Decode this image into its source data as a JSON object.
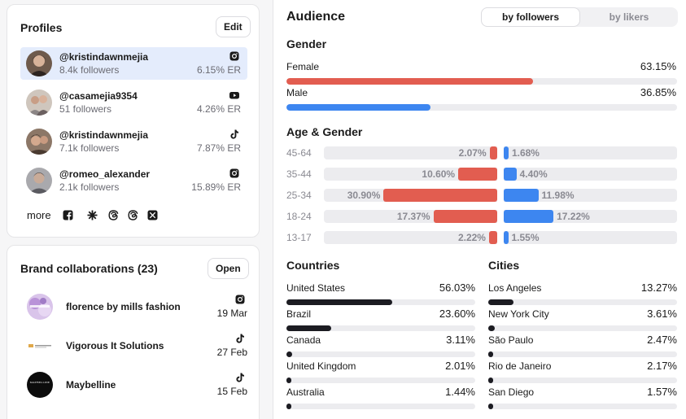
{
  "profiles": {
    "title": "Profiles",
    "edit_label": "Edit",
    "items": [
      {
        "handle": "@kristindawnmejia",
        "followers": "8.4k followers",
        "er": "6.15% ER",
        "platform": "instagram-icon"
      },
      {
        "handle": "@casamejia9354",
        "followers": "51 followers",
        "er": "4.26% ER",
        "platform": "youtube-icon"
      },
      {
        "handle": "@kristindawnmejia",
        "followers": "7.1k followers",
        "er": "7.87% ER",
        "platform": "tiktok-icon"
      },
      {
        "handle": "@romeo_alexander",
        "followers": "2.1k followers",
        "er": "15.89% ER",
        "platform": "instagram-icon"
      }
    ],
    "more_label": "more",
    "more_icons": [
      "facebook-icon",
      "linktree-icon",
      "threads-icon",
      "threads-icon",
      "x-icon"
    ]
  },
  "brands": {
    "title": "Brand collaborations (23)",
    "open_label": "Open",
    "items": [
      {
        "name": "florence by mills fashion",
        "date": "19 Mar",
        "platform": "instagram-icon"
      },
      {
        "name": "Vigorous It Solutions",
        "date": "27 Feb",
        "platform": "tiktok-icon"
      },
      {
        "name": "Maybelline",
        "date": "15 Feb",
        "platform": "tiktok-icon",
        "logo_text": "MAYBELLINE"
      }
    ]
  },
  "audience": {
    "title": "Audience",
    "tabs": [
      {
        "label": "by followers",
        "active": true
      },
      {
        "label": "by likers",
        "active": false
      }
    ],
    "gender": {
      "title": "Gender",
      "items": [
        {
          "label": "Female",
          "value": "63.15%",
          "pct": 63.15,
          "color": "#e25d50"
        },
        {
          "label": "Male",
          "value": "36.85%",
          "pct": 36.85,
          "color": "#3d86f0"
        }
      ]
    },
    "age_gender": {
      "title": "Age & Gender",
      "rows": [
        {
          "age": "45-64",
          "female": "2.07%",
          "female_pct": 2.07,
          "male": "1.68%",
          "male_pct": 1.68
        },
        {
          "age": "35-44",
          "female": "10.60%",
          "female_pct": 10.6,
          "male": "4.40%",
          "male_pct": 4.4
        },
        {
          "age": "25-34",
          "female": "30.90%",
          "female_pct": 30.9,
          "male": "11.98%",
          "male_pct": 11.98
        },
        {
          "age": "18-24",
          "female": "17.37%",
          "female_pct": 17.37,
          "male": "17.22%",
          "male_pct": 17.22
        },
        {
          "age": "13-17",
          "female": "2.22%",
          "female_pct": 2.22,
          "male": "1.55%",
          "male_pct": 1.55
        }
      ]
    },
    "countries": {
      "title": "Countries",
      "items": [
        {
          "name": "United States",
          "value": "56.03%",
          "pct": 56.03
        },
        {
          "name": "Brazil",
          "value": "23.60%",
          "pct": 23.6
        },
        {
          "name": "Canada",
          "value": "3.11%",
          "pct": 3.11
        },
        {
          "name": "United Kingdom",
          "value": "2.01%",
          "pct": 2.01
        },
        {
          "name": "Australia",
          "value": "1.44%",
          "pct": 1.44
        }
      ]
    },
    "cities": {
      "title": "Cities",
      "items": [
        {
          "name": "Los Angeles",
          "value": "13.27%",
          "pct": 13.27
        },
        {
          "name": "New York City",
          "value": "3.61%",
          "pct": 3.61
        },
        {
          "name": "São Paulo",
          "value": "2.47%",
          "pct": 2.47
        },
        {
          "name": "Rio de Janeiro",
          "value": "2.17%",
          "pct": 2.17
        },
        {
          "name": "San Diego",
          "value": "1.57%",
          "pct": 1.57
        }
      ]
    }
  }
}
